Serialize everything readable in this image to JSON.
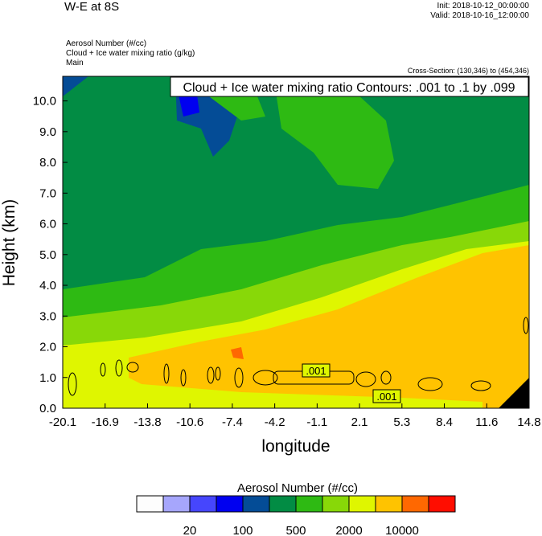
{
  "header": {
    "title": "W-E at 8S",
    "init": "Init: 2018-10-12_00:00:00",
    "valid": "Valid: 2018-10-16_12:00:00",
    "field1": "Aerosol Number   (#/cc)",
    "field2": "Cloud + Ice water mixing ratio   (g/kg)",
    "field3": "Main",
    "cross_section": "Cross-Section: (130,346) to (454,346)"
  },
  "chart_data": {
    "type": "heatmap",
    "title": "Cloud + Ice water mixing ratio Contours: .001 to .1 by .099",
    "xlabel": "longitude",
    "ylabel": "Height (km)",
    "xlim": [
      -20.1,
      14.8
    ],
    "ylim": [
      0,
      10.8
    ],
    "xticks": [
      "-20.1",
      "-16.9",
      "-13.8",
      "-10.6",
      "-7.4",
      "-4.2",
      "-1.1",
      "2.1",
      "5.3",
      "8.4",
      "11.6",
      "14.8"
    ],
    "yticks": [
      "0.0",
      "1.0",
      "2.0",
      "3.0",
      "4.0",
      "5.0",
      "6.0",
      "7.0",
      "8.0",
      "9.0",
      "10.0"
    ],
    "contour_labels": [
      ".001",
      ".001"
    ],
    "colorbar": {
      "title": "Aerosol Number  (#/cc)",
      "colors": [
        "#fdfdfd",
        "#a6a6fc",
        "#4646fd",
        "#0000f0",
        "#044c96",
        "#028c44",
        "#2eba13",
        "#88d808",
        "#dff600",
        "#ffc300",
        "#ff6801",
        "#ff0d00"
      ],
      "labels": [
        "20",
        "100",
        "500",
        "2000",
        "10000"
      ]
    }
  }
}
